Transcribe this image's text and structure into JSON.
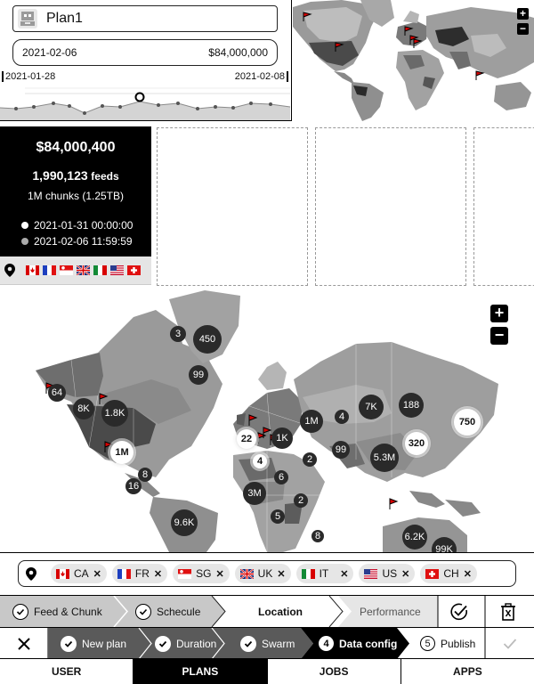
{
  "plan": {
    "name": "Plan1",
    "range_start": "2021-02-06",
    "budget": "$84,000,000",
    "timeline_start": "2021-01-28",
    "timeline_end": "2021-02-08"
  },
  "mini_map": {
    "zoom_in": "+",
    "zoom_out": "−"
  },
  "stats": {
    "amount": "$84,000,400",
    "feeds_count": "1,990,123",
    "feeds_label": "feeds",
    "chunks": "1M chunks (1.25TB)",
    "time_start": "2021-01-31 00:00:00",
    "time_end": "2021-02-06 11:59:59"
  },
  "map": {
    "zoom_in": "+",
    "zoom_out": "−",
    "clusters": [
      "3",
      "450",
      "99",
      "64",
      "8K",
      "1.8K",
      "1M",
      "4",
      "7K",
      "188",
      "750",
      "22",
      "1K",
      "320",
      "4",
      "2",
      "99",
      "5.3M",
      "8",
      "16",
      "1M",
      "6",
      "3M",
      "2",
      "5",
      "9.6K",
      "8",
      "6.2K",
      "99K"
    ]
  },
  "chips": [
    {
      "code": "CA",
      "flag": "ca"
    },
    {
      "code": "FR",
      "flag": "fr"
    },
    {
      "code": "SG",
      "flag": "sg"
    },
    {
      "code": "UK",
      "flag": "uk"
    },
    {
      "code": "IT",
      "flag": "it"
    },
    {
      "code": "US",
      "flag": "us"
    },
    {
      "code": "CH",
      "flag": "ch"
    }
  ],
  "setup_steps": {
    "feed_chunk": "Feed & Chunk",
    "schedule": "Schecule",
    "location": "Location",
    "performance": "Performance"
  },
  "wizard_steps": {
    "new_plan": "New plan",
    "duration": "Duration",
    "swarm": "Swarm",
    "data_config_num": "4",
    "data_config": "Data config",
    "publish_num": "5",
    "publish": "Publish"
  },
  "nav": {
    "user": "USER",
    "plans": "PLANS",
    "jobs": "JOBS",
    "apps": "APPS"
  },
  "colors": {
    "accent": "#000000",
    "flag_red": "#d80000",
    "map_land": "#9a9a9a"
  }
}
